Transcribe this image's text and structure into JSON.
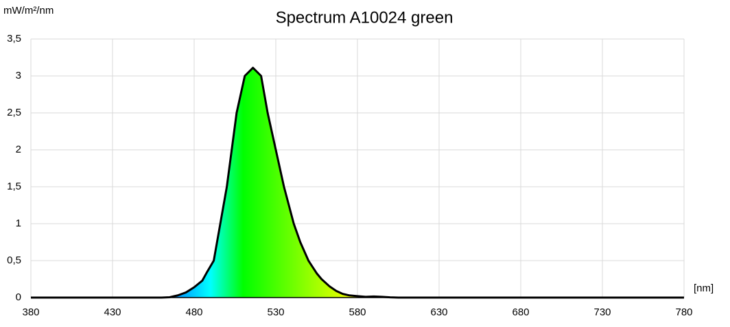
{
  "chart_data": {
    "type": "area",
    "title": "Spectrum A10024 green",
    "y_label": "mW/m²/nm",
    "x_label": "[nm]",
    "x": [
      380,
      460,
      465,
      470,
      475,
      480,
      485,
      488,
      492,
      496,
      500,
      503,
      506,
      511,
      516,
      521,
      525,
      530,
      535,
      541,
      545,
      550,
      555,
      558,
      563,
      567,
      571,
      575,
      580,
      585,
      590,
      595,
      600,
      605,
      780
    ],
    "values": [
      0,
      0,
      0.005,
      0.03,
      0.07,
      0.14,
      0.23,
      0.35,
      0.5,
      1,
      1.5,
      2,
      2.5,
      3,
      3.11,
      3,
      2.5,
      2,
      1.5,
      1,
      0.75,
      0.5,
      0.33,
      0.25,
      0.15,
      0.09,
      0.05,
      0.03,
      0.02,
      0.01,
      0.015,
      0.01,
      0.003,
      0,
      0
    ],
    "color": "#000000",
    "xlim": [
      380,
      780
    ],
    "xticks": [
      380,
      430,
      480,
      530,
      580,
      630,
      680,
      730,
      780
    ],
    "ylim": [
      0,
      3.5
    ],
    "yticks": [
      0,
      {
        "value": 0.5,
        "label": "0,5"
      },
      1,
      {
        "value": 1.5,
        "label": "1,5"
      },
      2,
      {
        "value": 2.5,
        "label": "2,5"
      },
      3,
      {
        "value": 3.5,
        "label": "3,5"
      }
    ],
    "grid": true
  }
}
